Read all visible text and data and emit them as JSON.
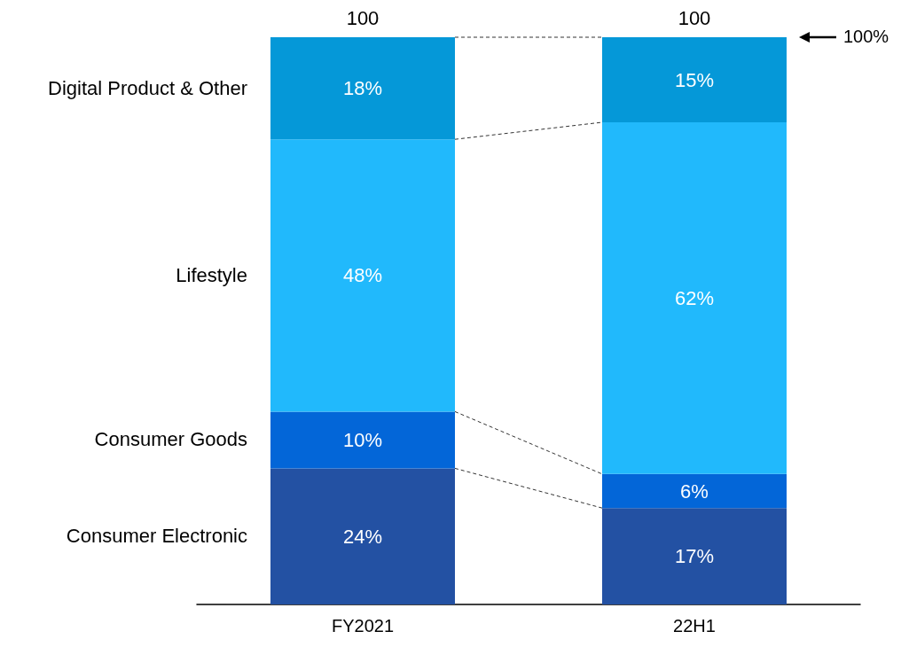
{
  "chart_data": {
    "type": "bar",
    "stacked": true,
    "categories": [
      "FY2021",
      "22H1"
    ],
    "series": [
      {
        "name": "Consumer Electronic",
        "color": "#2351a3",
        "values": [
          24,
          17
        ],
        "value_labels": [
          "24%",
          "17%"
        ]
      },
      {
        "name": "Consumer Goods",
        "color": "#0366d8",
        "values": [
          10,
          6
        ],
        "value_labels": [
          "10%",
          "6%"
        ]
      },
      {
        "name": "Lifestyle",
        "color": "#21b9fc",
        "values": [
          48,
          62
        ],
        "value_labels": [
          "48%",
          "62%"
        ]
      },
      {
        "name": "Digital Product & Other",
        "color": "#0598d8",
        "values": [
          18,
          15
        ],
        "value_labels": [
          "18%",
          "15%"
        ]
      }
    ],
    "totals": [
      "100",
      "100"
    ],
    "annotations": [
      "100%"
    ],
    "legend": false
  }
}
